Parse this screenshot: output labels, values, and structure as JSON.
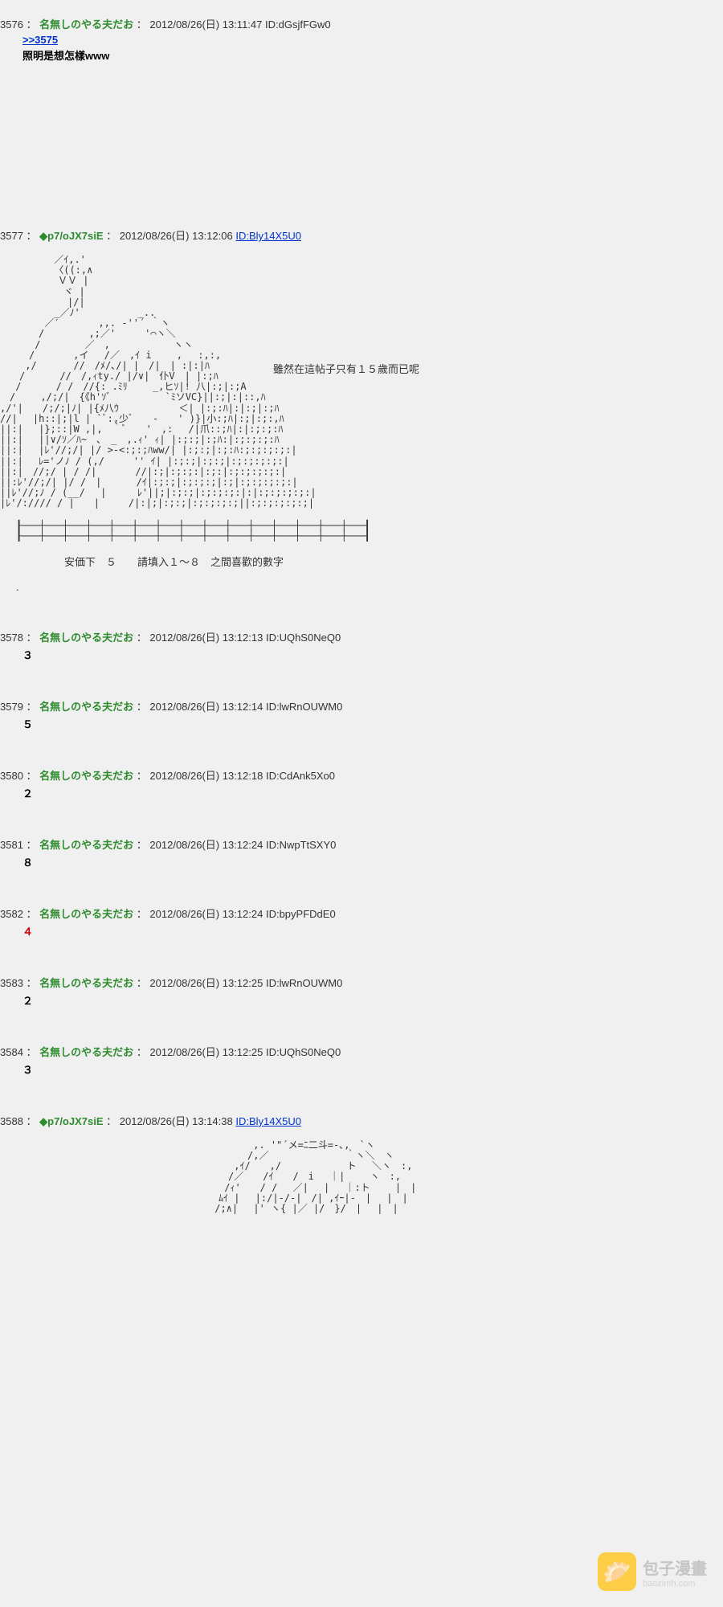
{
  "posts": [
    {
      "num": "3576",
      "name": "名無しのやる夫だお",
      "date": "2012/08/26(日) 13:11:47",
      "id": "ID:dGsjfFGw0",
      "id_link": false,
      "reply": ">>3575",
      "body_bold": "照明是想怎樣www"
    },
    {
      "num": "3577",
      "trip": "◆p7/oJX7siE",
      "date": "2012/08/26(日) 13:12:06",
      "id": "ID:Bly14X5U0",
      "id_link": true,
      "aa": true,
      "aa_caption": "雖然在這帖子只有１５歲而已呢",
      "anka": "安価下　５　　請填入１～８　之間喜歡的數字"
    },
    {
      "num": "3578",
      "name": "名無しのやる夫だお",
      "date": "2012/08/26(日) 13:12:13",
      "id": "ID:UQhS0NeQ0",
      "id_link": false,
      "vote": "３"
    },
    {
      "num": "3579",
      "name": "名無しのやる夫だお",
      "date": "2012/08/26(日) 13:12:14",
      "id": "ID:lwRnOUWM0",
      "id_link": false,
      "vote": "５"
    },
    {
      "num": "3580",
      "name": "名無しのやる夫だお",
      "date": "2012/08/26(日) 13:12:18",
      "id": "ID:CdAnk5Xo0",
      "id_link": false,
      "vote": "２"
    },
    {
      "num": "3581",
      "name": "名無しのやる夫だお",
      "date": "2012/08/26(日) 13:12:24",
      "id": "ID:NwpTtSXY0",
      "id_link": false,
      "vote": "８"
    },
    {
      "num": "3582",
      "name": "名無しのやる夫だお",
      "date": "2012/08/26(日) 13:12:24",
      "id": "ID:bpyPFDdE0",
      "id_link": false,
      "vote": "４",
      "red": true
    },
    {
      "num": "3583",
      "name": "名無しのやる夫だお",
      "date": "2012/08/26(日) 13:12:25",
      "id": "ID:lwRnOUWM0",
      "id_link": false,
      "vote": "２"
    },
    {
      "num": "3584",
      "name": "名無しのやる夫だお",
      "date": "2012/08/26(日) 13:12:25",
      "id": "ID:UQhS0NeQ0",
      "id_link": false,
      "vote": "３"
    },
    {
      "num": "3588",
      "trip": "◆p7/oJX7siE",
      "date": "2012/08/26(日) 13:14:38",
      "id": "ID:Bly14X5U0",
      "id_link": true,
      "aa2": true
    }
  ],
  "watermark": {
    "icon": "🥟",
    "title": "包子漫畫",
    "sub": "baozimh.com"
  },
  "sep": "：",
  "aa_art_1": "　　　　　 ／ｲ,.'\n　　　　　 〈((:,∧\n　　　　　　ＶＶ |\n　　　　　　 ヾ |\n　　　　　　　|/|\n　　　　　 _／ﾉ'　　　　　　_..\n　　　　 ／′　　　　,,. -''´ ｀ヽ\n　　　　/　　　　 ,;／'　　　'⌒ヽ＼\n　　　 /　　　　 ／　,　　　　　 　ヽヽ\n　　　/　　　　,イ　 /／　,ｲ i　　 ,　 :,:,\n　　 ,/ 　 　 //　/ﾒ/､/| |　/|　| :|:|ﾊ\n　　/　　　 //　/,ｨty./ |/∨|　仆V　| |:;ﾊ\n　 /　　　 / /　//{: .ﾐﾘ　　 _,ヒｿ|! 八|:;|:;A\n　/　　 ,/;/|　{《h'ｿﾞ　　　　　 `ﾐソVC}||:;|:|::,ﾊ\n,/'|　　/;/;|ﾉ| |{ﾒ八ｳ　　　　 　 ＜| |:;:ﾊ|:|:;|:;ﾊ\n//|　 |h::|;|l | `ﾞ:,少ﾞ　　-　　' )}|小:;ﾊ|:;|:;:,ﾊ\n||:|　 |};::|W ,|,　｀ﾞ　　'　,:　 /|爪::;ﾊ|:|:;:;:ﾊ\n||:|　 ||∨/ｿ／ﾊ~　､　_　,.ｨ' ｨ| |:;:;|:;ﾊ:|:;:;:;:ﾊ\n||:|　 |ﾚ'//;/| |/ >-<:;:;ﾊww/| |:;:;|:;:ﾊ:;:;:;:;:|\n||:|　 ﾚ='ノﾉ / (,/　　　'' ｲ| |:;:;|:;:;|:;:;:;:;:|\n||:|　//;/ | / /|　　　　//|:;|:;:;:|:;:|:;:;:;:;:|\n||:ﾚ'//;/| |/ /　|　　　 /ｲ|:;:;|:;:;:;|:;|:;:;:;:;:|\n||ﾚ'//;ﾉ / (__/　 |　 　 ﾚ'||;|:;:;|:;:;:;:|:|:;:;:;:;:|\n|ﾚ'/://// / |　　|　　　/|:|;|:;:;|:;:;:;:;||:;:;:;:;:;|",
  "aa_rail": "┠───┼───┼───┼───┼───┼───┼───┼───┼───┼───┼───┼───┼───┼───┼───┨\n┠───┼───┼───┼───┼───┼───┼───┼───┼───┼───┼───┼───┼───┼───┼───┨",
  "aa_art_2": "　　　　　　　　　　　　　　 ,. '\"´メ=ﾆ二斗=-､,　`ヽ\n　　　　　　　　　　　　　　/,／　　　　　　　　｀ヽ＼　ヽ\n　　　　　　　　　　　　 ,ｲ/　　,/　　　 　 　 ト　 ＼ヽ　:,\n　　　　　　　　　　　　/／　　/ｲ　　/　i　 ｜|　　 ヽ　:,\n　　　　　　　　　　　 /ｨ'　　/ /　 ／|　 |　 ｜:ト　　 |　|\n　　　　　　　　　　　ﾑｲ |　 |:/|-/‐|　/| ,ｲｰ|‐　|　 |　|\n　　　　　　　　　　 /;∧|　 |' ヽ{ |／ |/　}/　|　 |　|"
}
